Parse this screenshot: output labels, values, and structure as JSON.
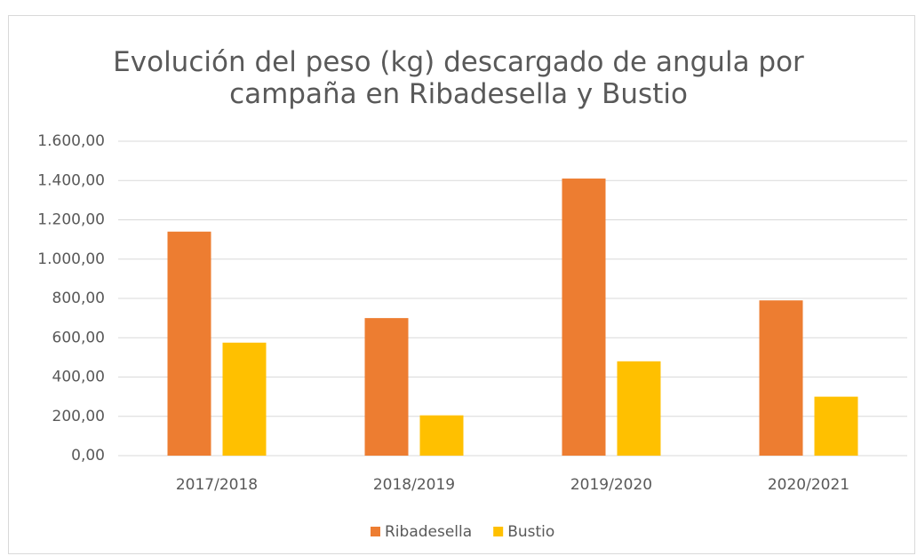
{
  "chart_data": {
    "type": "bar",
    "title": "Evolución del peso (kg) descargado de angula por campaña en Ribadesella y Bustio",
    "categories": [
      "2017/2018",
      "2018/2019",
      "2019/2020",
      "2020/2021"
    ],
    "series": [
      {
        "name": "Ribadesella",
        "color": "#ed7d31",
        "values": [
          1140,
          700,
          1410,
          790
        ]
      },
      {
        "name": "Bustio",
        "color": "#ffc000",
        "values": [
          575,
          205,
          480,
          300
        ]
      }
    ],
    "ylim": [
      0,
      1600
    ],
    "yticks": [
      {
        "value": 0,
        "label": "0,00"
      },
      {
        "value": 200,
        "label": "200,00"
      },
      {
        "value": 400,
        "label": "400,00"
      },
      {
        "value": 600,
        "label": "600,00"
      },
      {
        "value": 800,
        "label": "800,00"
      },
      {
        "value": 1000,
        "label": "1.000,00"
      },
      {
        "value": 1200,
        "label": "1.200,00"
      },
      {
        "value": 1400,
        "label": "1.400,00"
      },
      {
        "value": 1600,
        "label": "1.600,00"
      }
    ],
    "grid": true,
    "legend": "bottom"
  }
}
